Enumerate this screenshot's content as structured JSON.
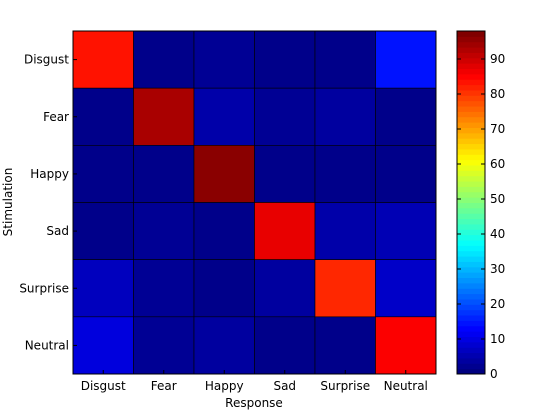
{
  "chart_data": {
    "type": "heatmap",
    "title": "",
    "xlabel": "Response",
    "ylabel": "Stimulation",
    "x_categories": [
      "Disgust",
      "Fear",
      "Happy",
      "Sad",
      "Surprise",
      "Neutral"
    ],
    "y_categories": [
      "Disgust",
      "Fear",
      "Happy",
      "Sad",
      "Surprise",
      "Neutral"
    ],
    "values": [
      [
        84,
        1,
        2,
        1,
        1,
        14
      ],
      [
        1,
        94,
        4,
        2,
        3,
        1
      ],
      [
        1,
        1,
        97,
        1,
        1,
        1
      ],
      [
        1,
        2,
        1,
        88,
        4,
        5
      ],
      [
        6,
        2,
        1,
        3,
        82,
        7
      ],
      [
        9,
        2,
        3,
        1,
        1,
        86
      ]
    ],
    "colorscale": "jet",
    "color_range": [
      0,
      98
    ],
    "colorbar_ticks": [
      0,
      10,
      20,
      30,
      40,
      50,
      60,
      70,
      80,
      90
    ],
    "grid": false
  }
}
